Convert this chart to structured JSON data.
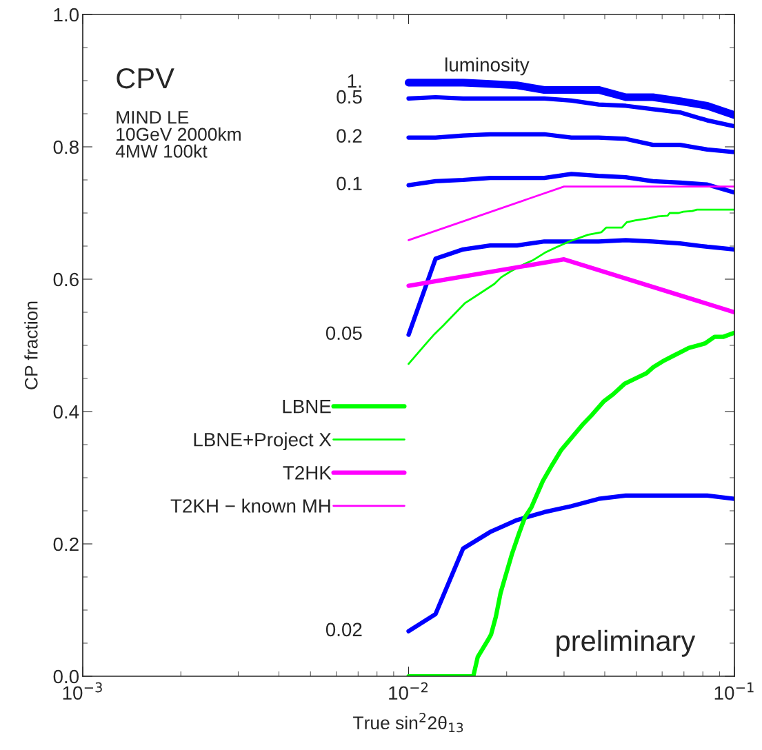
{
  "chart_data": {
    "type": "line",
    "xlabel": "True sin$^{2}$2θ$_{13}$",
    "ylabel": "CP fraction",
    "log": "x",
    "xlim": [
      0.001,
      0.1
    ],
    "xticks": [
      {
        "value": 0.001,
        "label": "10$^{−3}$"
      },
      {
        "value": 0.01,
        "label": "10$^{−2}$"
      },
      {
        "value": 0.1,
        "label": "10$^{−1}$"
      }
    ],
    "ylim": [
      0,
      1
    ],
    "yticks": [
      {
        "value": 0,
        "label": "0.0"
      },
      {
        "value": 0.2,
        "label": "0.2"
      },
      {
        "value": 0.4,
        "label": "0.4"
      },
      {
        "value": 0.6,
        "label": "0.6"
      },
      {
        "value": 0.8,
        "label": "0.8"
      },
      {
        "value": 1,
        "label": "1.0"
      }
    ],
    "grid": false,
    "legend": "left",
    "marker": "none",
    "line_style": "solid",
    "annotations": [
      "CPV",
      "MIND LE\n10GeV 2000km\n4MW 100kt",
      "luminosity",
      "preliminary"
    ],
    "x": [
      0.01,
      0.0121,
      0.0147,
      0.0178,
      0.0215,
      0.0261,
      0.0316,
      0.0383,
      0.0464,
      0.0562,
      0.0681,
      0.0825,
      0.1
    ],
    "series": [
      {
        "name": "1.",
        "color": "#0000ff",
        "values": [
          0.897,
          0.897,
          0.897,
          0.895,
          0.893,
          0.886,
          0.886,
          0.886,
          0.875,
          0.875,
          0.869,
          0.862,
          0.848
        ]
      },
      {
        "name": "0.5",
        "color": "#0000ff",
        "values": [
          0.873,
          0.875,
          0.873,
          0.873,
          0.873,
          0.873,
          0.87,
          0.864,
          0.862,
          0.857,
          0.852,
          0.84,
          0.831
        ]
      },
      {
        "name": "0.2",
        "color": "#0000ff",
        "values": [
          0.814,
          0.814,
          0.817,
          0.819,
          0.819,
          0.819,
          0.814,
          0.814,
          0.812,
          0.803,
          0.803,
          0.796,
          0.792
        ]
      },
      {
        "name": "0.1",
        "color": "#0000ff",
        "values": [
          0.742,
          0.748,
          0.75,
          0.753,
          0.753,
          0.753,
          0.759,
          0.756,
          0.754,
          0.748,
          0.746,
          0.743,
          0.731
        ]
      },
      {
        "name": "0.05",
        "color": "#0000ff",
        "values": [
          0.516,
          0.631,
          0.645,
          0.651,
          0.651,
          0.657,
          0.657,
          0.657,
          0.659,
          0.657,
          0.654,
          0.649,
          0.645
        ]
      },
      {
        "name": "0.02",
        "color": "#0000ff",
        "values": [
          0.068,
          0.094,
          0.193,
          0.218,
          0.236,
          0.248,
          0.257,
          0.268,
          0.273,
          0.273,
          0.273,
          0.273,
          0.268
        ]
      },
      {
        "name": "LBNE",
        "color": "#00ff00",
        "x": [
          0.01,
          0.0158,
          0.0163,
          0.01749,
          0.01791,
          0.01853,
          0.01916,
          0.01982,
          0.0208,
          0.02183,
          0.02279,
          0.0238,
          0.02583,
          0.02763,
          0.02942,
          0.03417,
          0.03655,
          0.03966,
          0.04243,
          0.04605,
          0.05023,
          0.05373,
          0.05636,
          0.0603,
          0.06545,
          0.07241,
          0.08128,
          0.08695,
          0.09259,
          0.1
        ],
        "values": [
          0,
          0,
          0.029,
          0.054,
          0.063,
          0.09,
          0.126,
          0.151,
          0.186,
          0.216,
          0.241,
          0.255,
          0.295,
          0.32,
          0.342,
          0.38,
          0.395,
          0.415,
          0.426,
          0.442,
          0.451,
          0.458,
          0.467,
          0.476,
          0.485,
          0.496,
          0.503,
          0.513,
          0.513,
          0.519
        ]
      },
      {
        "name": "LBNE+Project X",
        "color": "#00ff00",
        "x": [
          0.01,
          0.01133,
          0.01201,
          0.01278,
          0.01368,
          0.01491,
          0.01603,
          0.01698,
          0.01835,
          0.01925,
          0.0206,
          0.02268,
          0.02414,
          0.02621,
          0.02831,
          0.03117,
          0.0355,
          0.03909,
          0.04044,
          0.04517,
          0.04672,
          0.04973,
          0.05477,
          0.05831,
          0.06237,
          0.06328,
          0.06738,
          0.06968,
          0.07419,
          0.07674,
          0.1
        ],
        "values": [
          0.472,
          0.503,
          0.517,
          0.53,
          0.545,
          0.564,
          0.574,
          0.582,
          0.593,
          0.603,
          0.612,
          0.623,
          0.629,
          0.64,
          0.648,
          0.657,
          0.667,
          0.671,
          0.678,
          0.678,
          0.686,
          0.689,
          0.692,
          0.695,
          0.696,
          0.7,
          0.7,
          0.702,
          0.703,
          0.705,
          0.705
        ]
      },
      {
        "name": "T2HK",
        "color": "#ff00ff",
        "x": [
          0.01,
          0.03,
          0.1
        ],
        "values": [
          0.59,
          0.63,
          0.55
        ]
      },
      {
        "name": "T2KH − known MH",
        "color": "#ff00ff",
        "x": [
          0.01,
          0.03,
          0.1
        ],
        "values": [
          0.659,
          0.74,
          0.74
        ]
      }
    ]
  }
}
